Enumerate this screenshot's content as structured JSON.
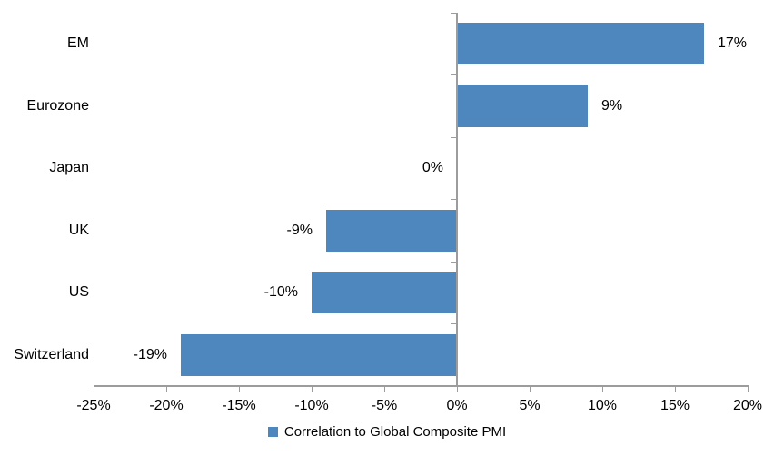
{
  "chart_data": {
    "type": "bar",
    "orientation": "horizontal",
    "categories": [
      "EM",
      "Eurozone",
      "Japan",
      "UK",
      "US",
      "Switzerland"
    ],
    "series": [
      {
        "name": "Correlation to Global Composite PMI",
        "values": [
          17,
          9,
          0,
          -9,
          -10,
          -19
        ]
      }
    ],
    "value_labels": [
      "17%",
      "9%",
      "0%",
      "-9%",
      "-10%",
      "-19%"
    ],
    "x_axis": {
      "range": [
        -25,
        20
      ],
      "tick_values": [
        -25,
        -20,
        -15,
        -10,
        -5,
        0,
        5,
        10,
        15,
        20
      ],
      "tick_labels": [
        "-25%",
        "-20%",
        "-15%",
        "-10%",
        "-5%",
        "0%",
        "5%",
        "10%",
        "15%",
        "20%"
      ]
    },
    "grid": false,
    "legend_position": "bottom",
    "legend": {
      "items": [
        {
          "label": "Correlation to Global Composite PMI",
          "color": "#4E87BE"
        }
      ]
    },
    "colors": {
      "bar": "#4E87BE",
      "axis": "#9C9C9C",
      "text": "#000000",
      "background": "#FFFFFF"
    }
  }
}
